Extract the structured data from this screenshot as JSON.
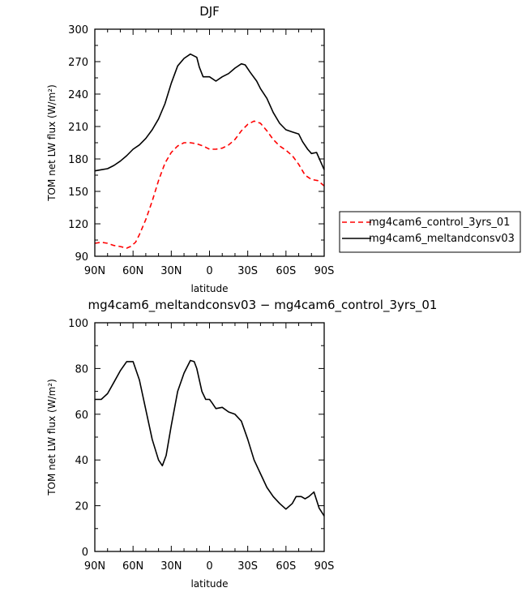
{
  "chart_data": [
    {
      "type": "line",
      "title": "DJF",
      "xlabel": "latitude",
      "ylabel": "TOM net LW flux (W/m²)",
      "ylim": [
        90,
        300
      ],
      "yticks": [
        90,
        120,
        150,
        180,
        210,
        240,
        270,
        300
      ],
      "xlim": [
        90,
        -90
      ],
      "xticks": [
        90,
        60,
        30,
        0,
        -30,
        -60,
        -90
      ],
      "xtick_labels": [
        "90N",
        "60N",
        "30N",
        "0",
        "30S",
        "60S",
        "90S"
      ],
      "legend_position": "right",
      "series": [
        {
          "name": "mg4cam6_control_3yrs_01",
          "color": "#ff0000",
          "dash": "dashed",
          "points": [
            [
              90,
              102
            ],
            [
              85,
              103
            ],
            [
              80,
              102
            ],
            [
              75,
              100
            ],
            [
              70,
              99
            ],
            [
              65,
              97.5
            ],
            [
              62,
              99
            ],
            [
              58,
              103
            ],
            [
              55,
              110
            ],
            [
              50,
              124
            ],
            [
              45,
              141
            ],
            [
              40,
              160
            ],
            [
              35,
              176
            ],
            [
              30,
              186
            ],
            [
              25,
              192
            ],
            [
              20,
              195
            ],
            [
              15,
              195
            ],
            [
              10,
              194
            ],
            [
              5,
              192
            ],
            [
              0,
              189
            ],
            [
              -5,
              189
            ],
            [
              -10,
              190
            ],
            [
              -15,
              193
            ],
            [
              -20,
              198
            ],
            [
              -25,
              206
            ],
            [
              -30,
              212
            ],
            [
              -35,
              215
            ],
            [
              -40,
              213
            ],
            [
              -45,
              206
            ],
            [
              -50,
              198
            ],
            [
              -55,
              192
            ],
            [
              -60,
              188
            ],
            [
              -65,
              183
            ],
            [
              -70,
              175
            ],
            [
              -75,
              165
            ],
            [
              -80,
              161
            ],
            [
              -85,
              160
            ],
            [
              -90,
              155
            ]
          ]
        },
        {
          "name": "mg4cam6_meltandconsv03",
          "color": "#000000",
          "dash": "solid",
          "points": [
            [
              90,
              169
            ],
            [
              85,
              170
            ],
            [
              80,
              171
            ],
            [
              75,
              174
            ],
            [
              70,
              178
            ],
            [
              65,
              183
            ],
            [
              60,
              189
            ],
            [
              55,
              193
            ],
            [
              50,
              199
            ],
            [
              45,
              207
            ],
            [
              40,
              217
            ],
            [
              35,
              231
            ],
            [
              30,
              250
            ],
            [
              25,
              266
            ],
            [
              20,
              273
            ],
            [
              15,
              277
            ],
            [
              10,
              274
            ],
            [
              8,
              265
            ],
            [
              5,
              256
            ],
            [
              0,
              256
            ],
            [
              -5,
              252
            ],
            [
              -10,
              256
            ],
            [
              -15,
              259
            ],
            [
              -20,
              264
            ],
            [
              -25,
              268
            ],
            [
              -28,
              267
            ],
            [
              -32,
              260
            ],
            [
              -37,
              252
            ],
            [
              -40,
              245
            ],
            [
              -45,
              236
            ],
            [
              -50,
              223
            ],
            [
              -55,
              213
            ],
            [
              -60,
              207
            ],
            [
              -65,
              205
            ],
            [
              -70,
              203
            ],
            [
              -73,
              196
            ],
            [
              -77,
              189
            ],
            [
              -80,
              185
            ],
            [
              -84,
              186
            ],
            [
              -87,
              178
            ],
            [
              -90,
              170
            ]
          ]
        }
      ]
    },
    {
      "type": "line",
      "title": "mg4cam6_meltandconsv03 − mg4cam6_control_3yrs_01",
      "xlabel": "latitude",
      "ylabel": "TOM net LW flux (W/m²)",
      "ylim": [
        0,
        100
      ],
      "yticks": [
        0,
        20,
        40,
        60,
        80,
        100
      ],
      "xlim": [
        90,
        -90
      ],
      "xticks": [
        90,
        60,
        30,
        0,
        -30,
        -60,
        -90
      ],
      "xtick_labels": [
        "90N",
        "60N",
        "30N",
        "0",
        "30S",
        "60S",
        "90S"
      ],
      "series": [
        {
          "name": "",
          "color": "#000000",
          "dash": "solid",
          "points": [
            [
              90,
              66.5
            ],
            [
              85,
              66.5
            ],
            [
              80,
              69
            ],
            [
              75,
              74
            ],
            [
              70,
              79
            ],
            [
              65,
              83
            ],
            [
              60,
              83
            ],
            [
              55,
              75
            ],
            [
              50,
              62
            ],
            [
              45,
              49
            ],
            [
              40,
              40
            ],
            [
              37,
              37.5
            ],
            [
              34,
              42
            ],
            [
              30,
              55
            ],
            [
              25,
              70
            ],
            [
              20,
              78
            ],
            [
              15,
              83.5
            ],
            [
              12,
              83
            ],
            [
              10,
              80
            ],
            [
              6,
              70
            ],
            [
              3,
              66.5
            ],
            [
              0,
              66.5
            ],
            [
              -2,
              65
            ],
            [
              -5,
              62.5
            ],
            [
              -10,
              63
            ],
            [
              -15,
              61
            ],
            [
              -20,
              60
            ],
            [
              -25,
              57
            ],
            [
              -30,
              49
            ],
            [
              -35,
              40
            ],
            [
              -40,
              34
            ],
            [
              -45,
              28
            ],
            [
              -50,
              24
            ],
            [
              -55,
              21
            ],
            [
              -60,
              18.5
            ],
            [
              -65,
              21
            ],
            [
              -68,
              24
            ],
            [
              -72,
              24
            ],
            [
              -75,
              23
            ],
            [
              -78,
              24
            ],
            [
              -82,
              26
            ],
            [
              -86,
              19
            ],
            [
              -90,
              15.5
            ]
          ]
        }
      ]
    }
  ]
}
